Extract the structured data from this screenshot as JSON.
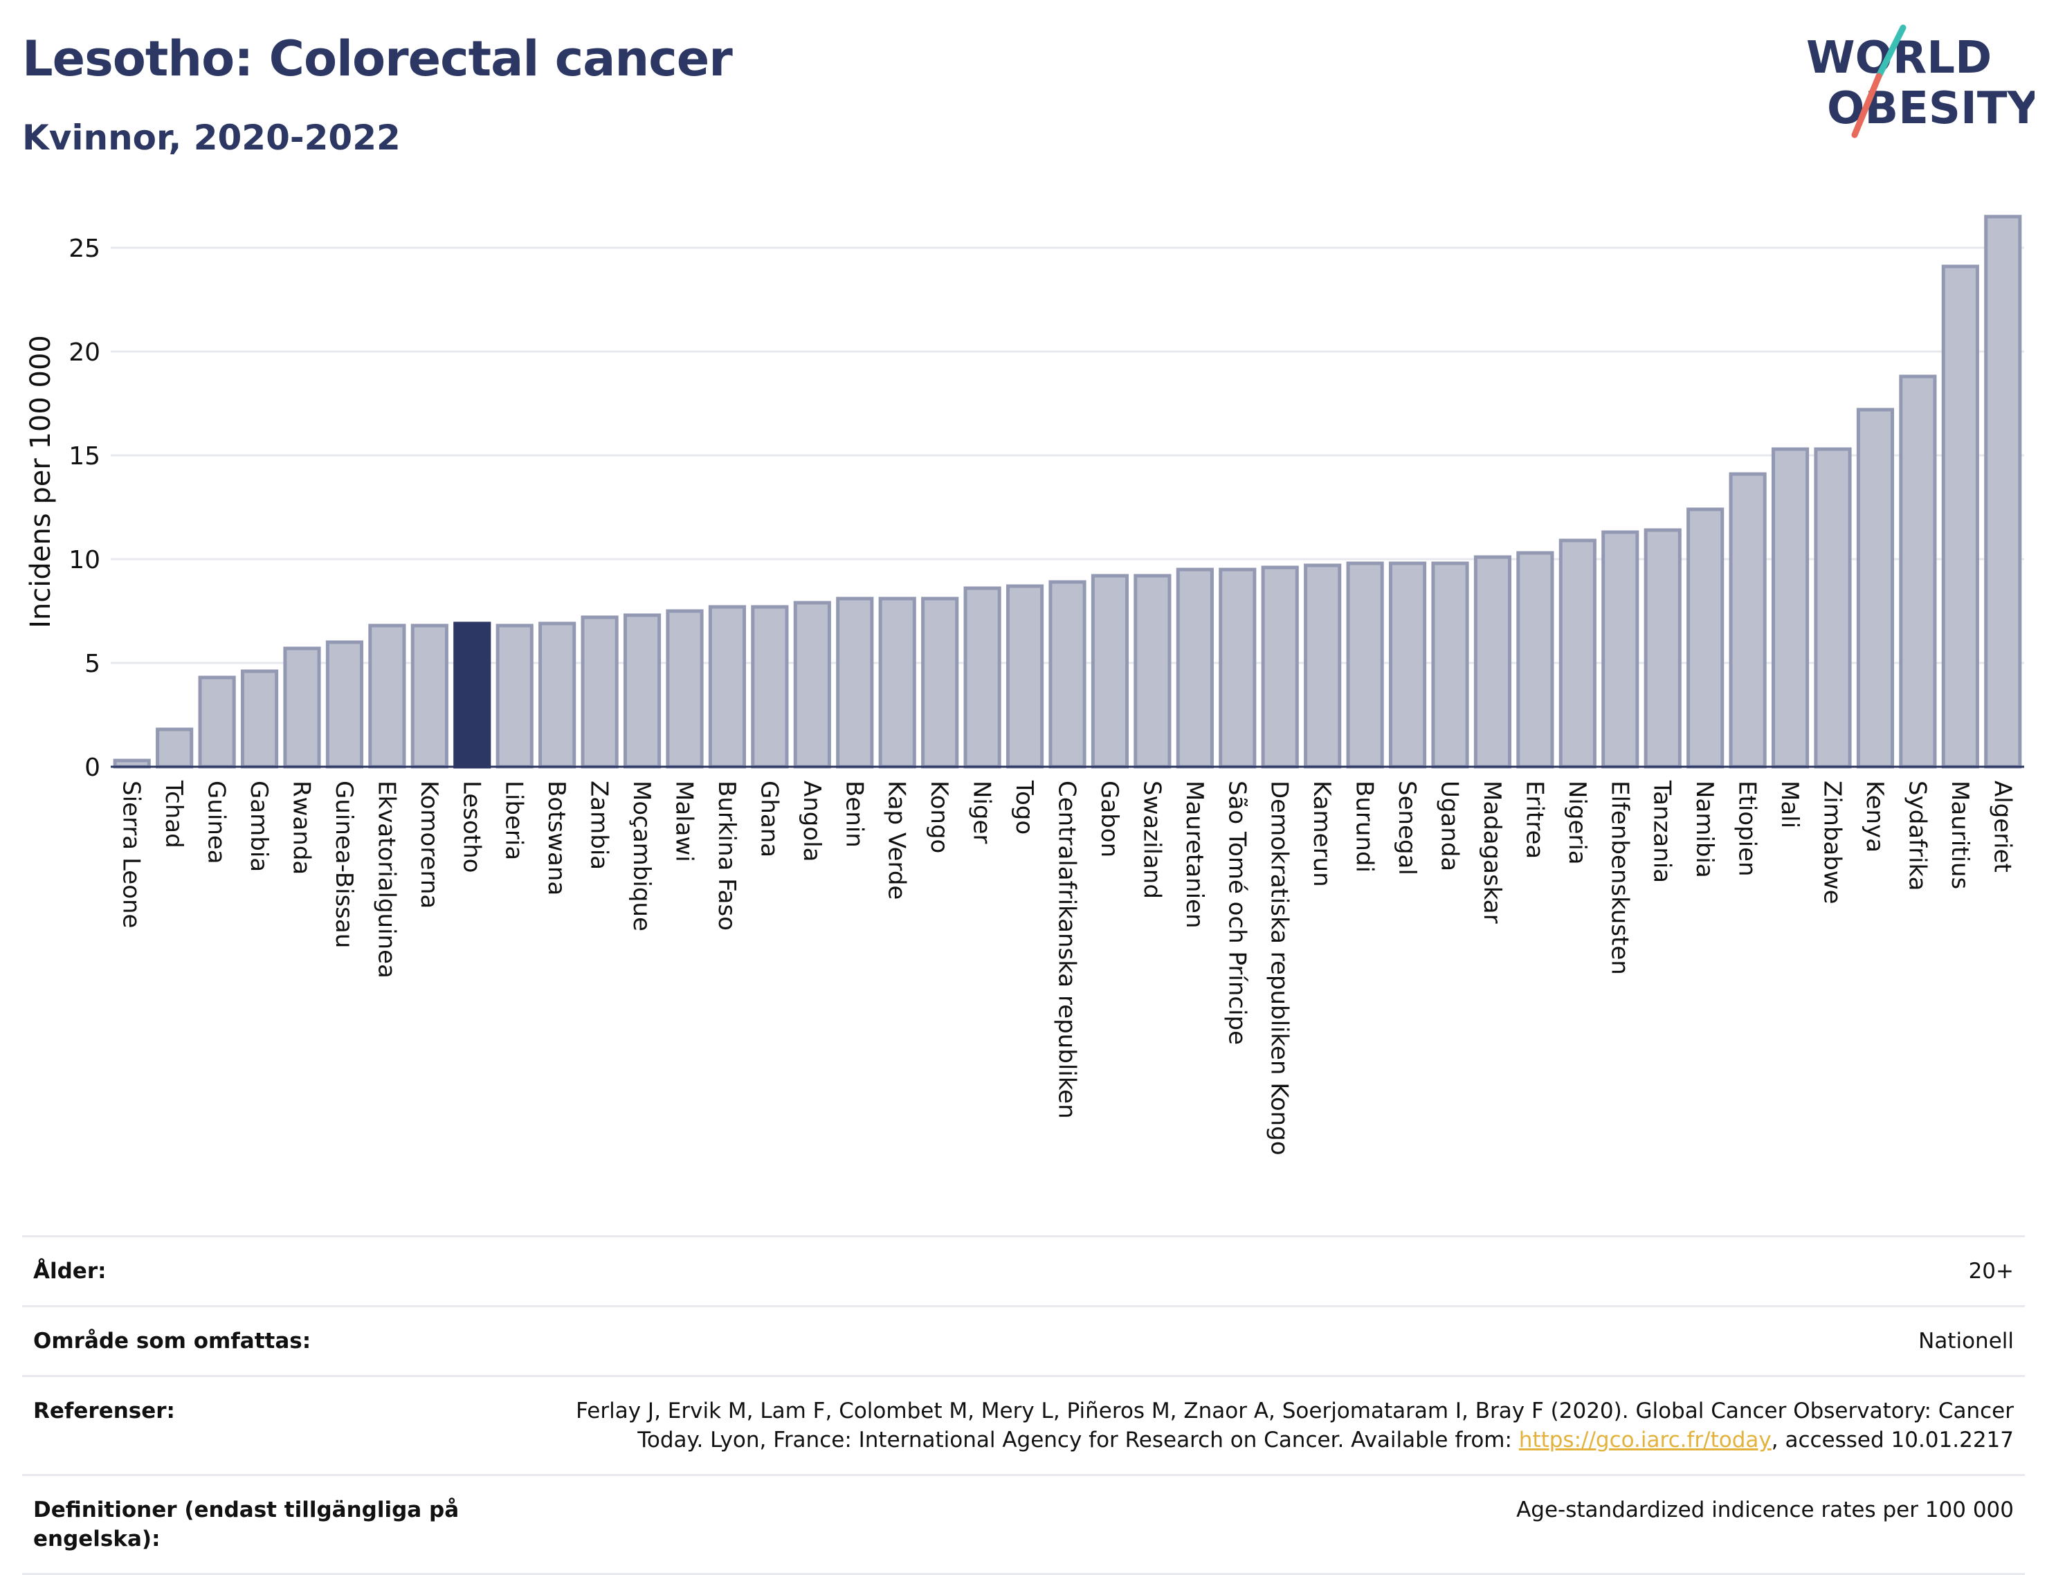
{
  "title": "Lesotho: Colorectal cancer",
  "subtitle": "Kvinnor, 2020-2022",
  "logo": {
    "line1": "WORLD",
    "line2": "OBESITY"
  },
  "colors": {
    "highlight": "#2c3764",
    "bar": "#bcc0ce",
    "bar_border": "#9399b2",
    "text": "#2c3764",
    "link": "#e3b23c"
  },
  "chart_data": {
    "type": "bar",
    "ylabel": "Incidens per 100 000",
    "xlabel": "",
    "ylim": [
      0,
      27.5
    ],
    "yticks": [
      0,
      5,
      10,
      15,
      20,
      25
    ],
    "grid": true,
    "highlight": "Lesotho",
    "categories": [
      "Sierra Leone",
      "Tchad",
      "Guinea",
      "Gambia",
      "Rwanda",
      "Guinea-Bissau",
      "Ekvatorialguinea",
      "Komorerna",
      "Lesotho",
      "Liberia",
      "Botswana",
      "Zambia",
      "Moçambique",
      "Malawi",
      "Burkina Faso",
      "Ghana",
      "Angola",
      "Benin",
      "Kap Verde",
      "Kongo",
      "Niger",
      "Togo",
      "Centralafrikanska republiken",
      "Gabon",
      "Swaziland",
      "Mauretanien",
      "São Tomé och Príncipe",
      "Demokratiska republiken Kongo",
      "Kamerun",
      "Burundi",
      "Senegal",
      "Uganda",
      "Madagaskar",
      "Eritrea",
      "Nigeria",
      "Elfenbenskusten",
      "Tanzania",
      "Namibia",
      "Etiopien",
      "Mali",
      "Zimbabwe",
      "Kenya",
      "Sydafrika",
      "Mauritius",
      "Algeriet"
    ],
    "values": [
      0.3,
      1.8,
      4.3,
      4.6,
      5.7,
      6.0,
      6.8,
      6.8,
      6.9,
      6.8,
      6.9,
      7.2,
      7.3,
      7.5,
      7.7,
      7.7,
      7.9,
      8.1,
      8.1,
      8.1,
      8.6,
      8.7,
      8.9,
      9.2,
      9.2,
      9.5,
      9.5,
      9.6,
      9.7,
      9.8,
      9.8,
      9.8,
      10.1,
      10.3,
      10.9,
      11.3,
      11.4,
      12.4,
      14.1,
      15.3,
      15.3,
      17.2,
      18.8,
      24.1,
      26.5
    ]
  },
  "meta": {
    "age_label": "Ålder:",
    "age_value": "20+",
    "area_label": "Område som omfattas:",
    "area_value": "Nationell",
    "ref_label": "Referenser:",
    "ref_text1": "Ferlay J, Ervik M, Lam F, Colombet M, Mery L, Piñeros M, Znaor A, Soerjomataram I, Bray F (2020). Global Cancer Observatory: Cancer Today. Lyon, France: International Agency for Research on Cancer. Available from: ",
    "ref_link": "https://gco.iarc.fr/today",
    "ref_text2": ", accessed 10.01.2217",
    "def_label": "Definitioner (endast tillgängliga på engelska):",
    "def_value": "Age-standardized indicence rates per 100 000"
  }
}
